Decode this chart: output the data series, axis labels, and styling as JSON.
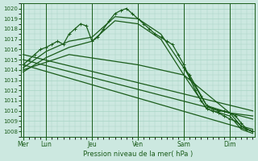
{
  "xlabel": "Pression niveau de la mer( hPa )",
  "day_labels": [
    "Mer",
    "Lun",
    "Jeu",
    "Ven",
    "Sam",
    "Dim"
  ],
  "day_positions": [
    0,
    24,
    72,
    120,
    168,
    216
  ],
  "ylim": [
    1007.5,
    1020.5
  ],
  "xlim": [
    -2,
    242
  ],
  "yticks": [
    1008,
    1009,
    1010,
    1011,
    1012,
    1013,
    1014,
    1015,
    1016,
    1017,
    1018,
    1019,
    1020
  ],
  "bg_color": "#cce8e0",
  "grid_color": "#a8d4c4",
  "line_color": "#1a5c1a",
  "marker_color": "#1a5c1a",
  "lines": [
    {
      "x": [
        0,
        6,
        12,
        18,
        24,
        30,
        36,
        42,
        48,
        54,
        60,
        66,
        72,
        78,
        84,
        90,
        96,
        102,
        108,
        114,
        120,
        126,
        132,
        138,
        144,
        150,
        156,
        162,
        168,
        174,
        180,
        186,
        192,
        198,
        204,
        210,
        216,
        222,
        228,
        234,
        240
      ],
      "y": [
        1014.5,
        1015.0,
        1015.5,
        1016.0,
        1016.2,
        1016.5,
        1016.8,
        1016.5,
        1017.5,
        1018.0,
        1018.5,
        1018.3,
        1016.8,
        1017.2,
        1018.0,
        1018.8,
        1019.5,
        1019.8,
        1020.0,
        1019.5,
        1019.0,
        1018.5,
        1018.0,
        1017.5,
        1017.2,
        1016.8,
        1016.5,
        1015.5,
        1014.5,
        1013.2,
        1012.0,
        1011.0,
        1010.2,
        1010.0,
        1009.8,
        1009.5,
        1009.2,
        1009.0,
        1008.5,
        1008.2,
        1008.0
      ],
      "marker": "+",
      "lw": 0.9
    },
    {
      "x": [
        0,
        240
      ],
      "y": [
        1014.5,
        1008.0
      ],
      "marker": null,
      "lw": 0.9
    },
    {
      "x": [
        0,
        240
      ],
      "y": [
        1015.0,
        1009.2
      ],
      "marker": null,
      "lw": 0.9
    },
    {
      "x": [
        0,
        240
      ],
      "y": [
        1015.5,
        1010.0
      ],
      "marker": null,
      "lw": 0.9
    },
    {
      "x": [
        0,
        24,
        48,
        72,
        96,
        120,
        144,
        168,
        192,
        216,
        228,
        240
      ],
      "y": [
        1014.2,
        1015.8,
        1016.8,
        1017.2,
        1019.2,
        1019.0,
        1017.5,
        1014.2,
        1010.5,
        1009.8,
        1008.5,
        1008.2
      ],
      "marker": null,
      "lw": 0.9
    },
    {
      "x": [
        0,
        24,
        48,
        72,
        96,
        120,
        144,
        168,
        192,
        216,
        228,
        240
      ],
      "y": [
        1013.8,
        1015.2,
        1016.2,
        1016.8,
        1018.8,
        1018.5,
        1017.0,
        1013.5,
        1010.2,
        1009.5,
        1008.2,
        1007.8
      ],
      "marker": null,
      "lw": 0.9
    },
    {
      "x": [
        0,
        48,
        120,
        168,
        216,
        240
      ],
      "y": [
        1014.0,
        1015.5,
        1014.5,
        1013.5,
        1009.8,
        1009.5
      ],
      "marker": null,
      "lw": 0.9
    },
    {
      "x": [
        168,
        174,
        180,
        186,
        192,
        198,
        204,
        210,
        216,
        222,
        228,
        234,
        240
      ],
      "y": [
        1014.2,
        1013.5,
        1012.5,
        1011.5,
        1010.5,
        1010.2,
        1010.0,
        1010.0,
        1009.8,
        1009.5,
        1008.8,
        1008.2,
        1008.0
      ],
      "marker": "+",
      "lw": 0.9
    }
  ]
}
